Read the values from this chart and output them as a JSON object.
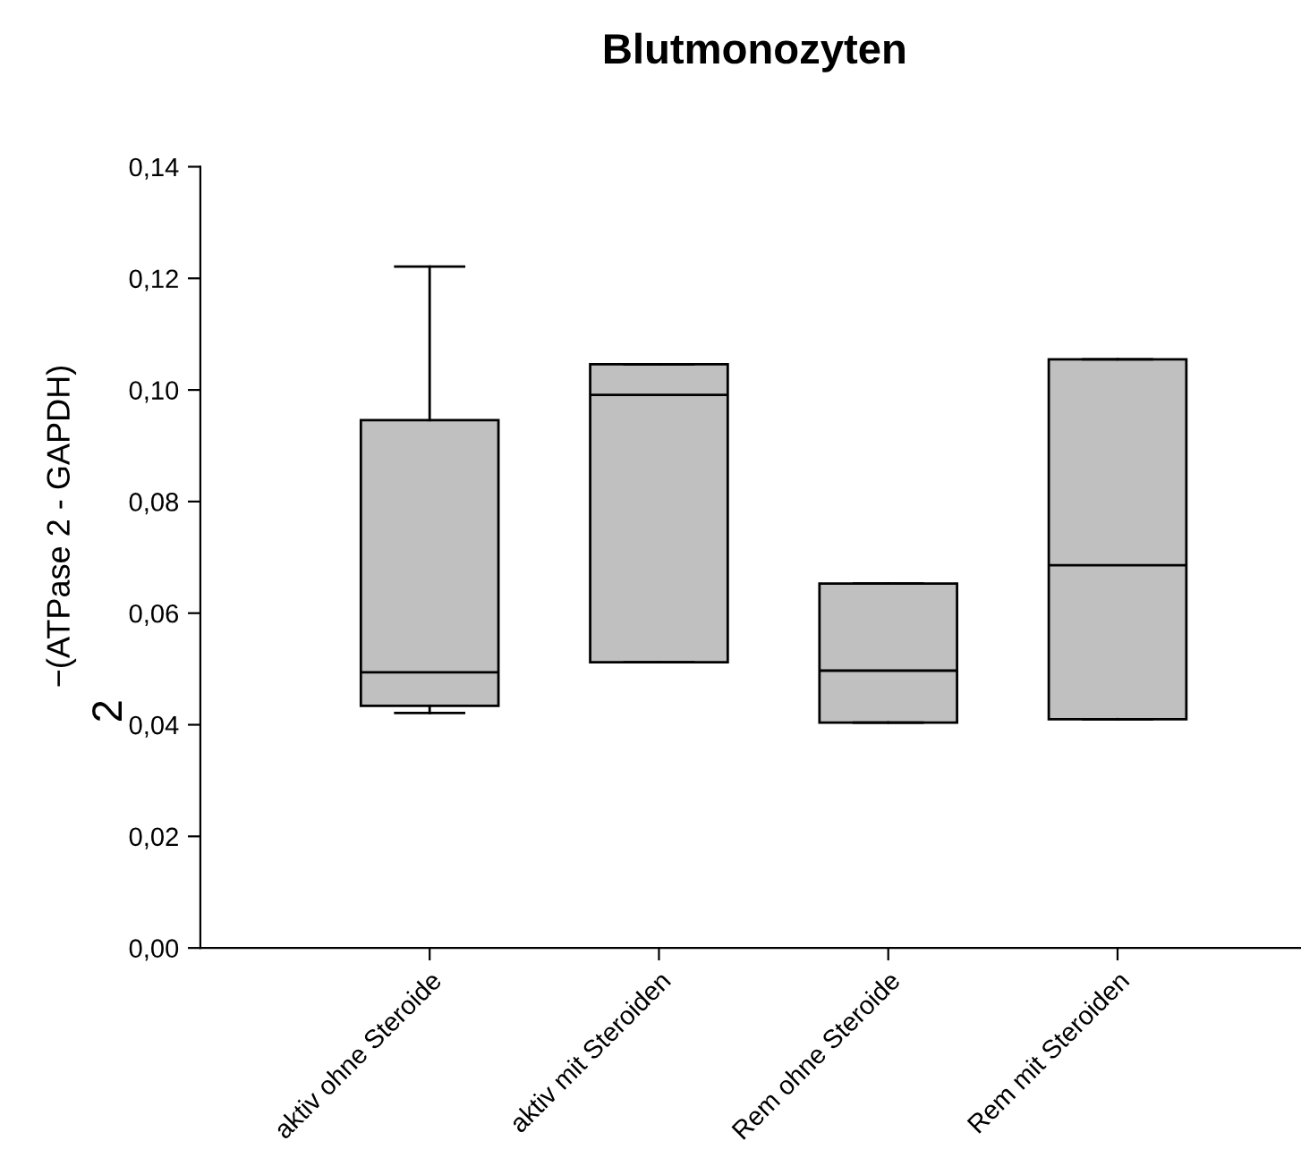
{
  "chart_data": {
    "type": "box",
    "title": "Blutmonozyten",
    "ylabel": "2$^{−(ATPase 2 - GAPDH)}$",
    "categories": [
      "aktiv ohne Steroide",
      "aktiv mit Steroiden",
      "Rem ohne Steroide",
      "Rem mit Steroiden"
    ],
    "boxes": [
      {
        "low": 0.0421,
        "q1": 0.0434,
        "median": 0.0494,
        "q3": 0.0946,
        "high": 0.1221
      },
      {
        "low": 0.0512,
        "q1": 0.0512,
        "median": 0.0991,
        "q3": 0.1046,
        "high": 0.1046
      },
      {
        "low": 0.0404,
        "q1": 0.0404,
        "median": 0.0497,
        "q3": 0.0653,
        "high": 0.0653
      },
      {
        "low": 0.041,
        "q1": 0.041,
        "median": 0.0686,
        "q3": 0.1055,
        "high": 0.1055
      }
    ],
    "color": "#c0c0c0",
    "ylim": [
      0,
      0.14
    ],
    "yticks": [
      {
        "value": 0,
        "label": "0,00"
      },
      {
        "value": 0.02,
        "label": "0,02"
      },
      {
        "value": 0.04,
        "label": "0,04"
      },
      {
        "value": 0.06,
        "label": "0,06"
      },
      {
        "value": 0.08,
        "label": "0,08"
      },
      {
        "value": 0.1,
        "label": "0,10"
      },
      {
        "value": 0.12,
        "label": "0,12"
      },
      {
        "value": 0.14,
        "label": "0,14"
      }
    ],
    "grid": false,
    "legend": false
  }
}
